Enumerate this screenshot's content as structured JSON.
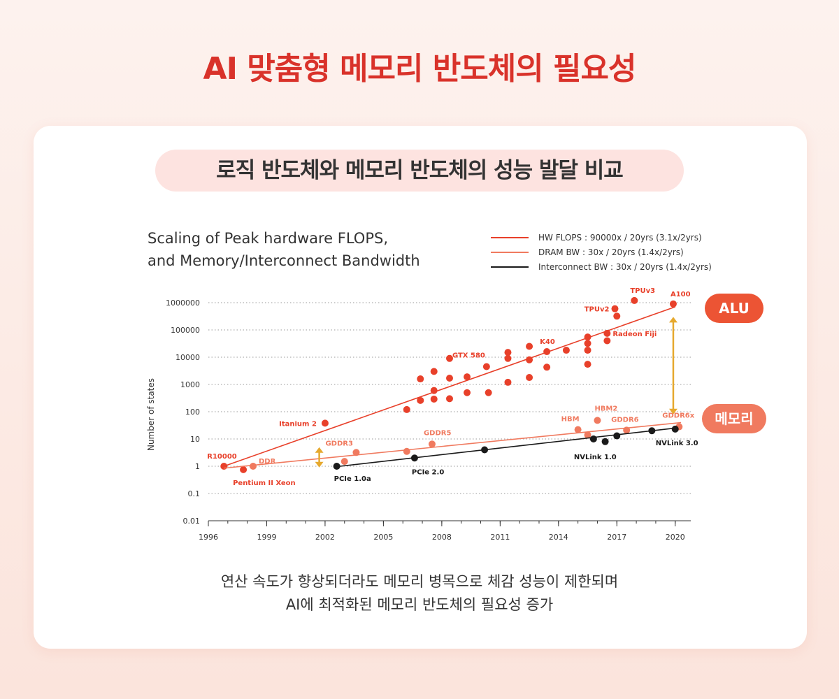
{
  "header": {
    "title": "AI 맞춤형 메모리 반도체의 필요성"
  },
  "card": {
    "subtitle": "로직 반도체와 메모리 반도체의 성능 발달 비교",
    "caption_line1": "연산 속도가 향상되더라도 메모리 병목으로 체감 성능이 제한되며",
    "caption_line2": "AI에 최적화된 메모리 반도체의 필요성 증가"
  },
  "chart_data": {
    "type": "scatter",
    "title_lines": [
      "Scaling of Peak hardware FLOPS,",
      "and Memory/Interconnect Bandwidth"
    ],
    "ylabel": "Number of states",
    "yscale": "log",
    "ylim": [
      0.01,
      1000000
    ],
    "y_ticks": [
      0.01,
      0.1,
      1,
      10,
      100,
      1000,
      10000,
      100000,
      1000000
    ],
    "y_tick_labels": [
      "0.01",
      "0.1",
      "1",
      "10",
      "100",
      "1000",
      "10000",
      "100000",
      "1000000"
    ],
    "xlim": [
      1996,
      2020.8
    ],
    "x_ticks": [
      1996,
      1999,
      2002,
      2005,
      2008,
      2011,
      2014,
      2017,
      2020
    ],
    "x_tick_labels": [
      "1996",
      "1999",
      "2002",
      "2005",
      "2008",
      "2011",
      "2014",
      "2017",
      "2020"
    ],
    "grid": "horizontal-dotted",
    "legend_position": "top-right",
    "legend": [
      {
        "label": "HW FLOPS : 90000x / 20yrs (3.1x/2yrs)",
        "color": "#e8402a"
      },
      {
        "label": "DRAM BW : 30x / 20yrs (1.4x/2yrs)",
        "color": "#f07a5f"
      },
      {
        "label": "Interconnect BW : 30x / 20yrs (1.4x/2yrs)",
        "color": "#1a1a1a"
      }
    ],
    "series": [
      {
        "color": "#e8402a",
        "trend": [
          [
            1996.8,
            1
          ],
          [
            2020,
            700000
          ]
        ],
        "points": [
          {
            "x": 1996.8,
            "y": 1,
            "label": "R10000"
          },
          {
            "x": 1997.8,
            "y": 0.75,
            "label": "Pentium II Xeon"
          },
          {
            "x": 2002.0,
            "y": 38,
            "label": "Itanium 2"
          },
          {
            "x": 2006.2,
            "y": 120
          },
          {
            "x": 2006.9,
            "y": 260
          },
          {
            "x": 2006.9,
            "y": 1600
          },
          {
            "x": 2007.6,
            "y": 290
          },
          {
            "x": 2007.6,
            "y": 600
          },
          {
            "x": 2007.6,
            "y": 3000
          },
          {
            "x": 2008.4,
            "y": 300
          },
          {
            "x": 2008.4,
            "y": 1700
          },
          {
            "x": 2008.4,
            "y": 9000
          },
          {
            "x": 2009.3,
            "y": 500
          },
          {
            "x": 2009.3,
            "y": 1900
          },
          {
            "x": 2010.3,
            "y": 4500,
            "label": "GTX 580"
          },
          {
            "x": 2010.4,
            "y": 500
          },
          {
            "x": 2011.4,
            "y": 1200
          },
          {
            "x": 2011.4,
            "y": 9000
          },
          {
            "x": 2011.4,
            "y": 15000
          },
          {
            "x": 2012.5,
            "y": 1800
          },
          {
            "x": 2012.5,
            "y": 8000
          },
          {
            "x": 2012.5,
            "y": 25000
          },
          {
            "x": 2013.4,
            "y": 4300
          },
          {
            "x": 2013.4,
            "y": 16000,
            "label": "K40"
          },
          {
            "x": 2014.4,
            "y": 18000
          },
          {
            "x": 2015.5,
            "y": 5500
          },
          {
            "x": 2015.5,
            "y": 18000
          },
          {
            "x": 2015.5,
            "y": 32000
          },
          {
            "x": 2015.5,
            "y": 55000
          },
          {
            "x": 2016.5,
            "y": 40000
          },
          {
            "x": 2016.5,
            "y": 75000,
            "label": "Radeon Fiji"
          },
          {
            "x": 2016.9,
            "y": 600000,
            "label": "TPUv2"
          },
          {
            "x": 2017.0,
            "y": 320000
          },
          {
            "x": 2017.9,
            "y": 1200000,
            "label": "TPUv3"
          },
          {
            "x": 2019.9,
            "y": 900000,
            "label": "A100"
          }
        ]
      },
      {
        "color": "#f07a5f",
        "trend": [
          [
            1996.8,
            0.85
          ],
          [
            2020.3,
            40
          ]
        ],
        "points": [
          {
            "x": 1998.3,
            "y": 1,
            "label": "DDR"
          },
          {
            "x": 2003.0,
            "y": 1.5
          },
          {
            "x": 2003.6,
            "y": 3.2,
            "label": "GDDR3"
          },
          {
            "x": 2006.2,
            "y": 3.5
          },
          {
            "x": 2007.5,
            "y": 6.5,
            "label": "GDDR5"
          },
          {
            "x": 2015.0,
            "y": 22,
            "label": "HBM"
          },
          {
            "x": 2015.5,
            "y": 14
          },
          {
            "x": 2016.0,
            "y": 48,
            "label": "HBM2"
          },
          {
            "x": 2017.5,
            "y": 21,
            "label": "GDDR6"
          },
          {
            "x": 2020.2,
            "y": 28,
            "label": "GDDR6x"
          }
        ]
      },
      {
        "color": "#1a1a1a",
        "trend": [
          [
            2002.5,
            0.95
          ],
          [
            2020.0,
            25
          ]
        ],
        "points": [
          {
            "x": 2002.6,
            "y": 1,
            "label": "PCIe 1.0a"
          },
          {
            "x": 2006.6,
            "y": 2,
            "label": "PCIe 2.0"
          },
          {
            "x": 2010.2,
            "y": 4
          },
          {
            "x": 2015.8,
            "y": 10,
            "label": "NVLink 1.0"
          },
          {
            "x": 2016.4,
            "y": 8
          },
          {
            "x": 2017.0,
            "y": 13
          },
          {
            "x": 2018.8,
            "y": 20
          },
          {
            "x": 2020.0,
            "y": 23,
            "label": "NVLink 3.0"
          }
        ]
      }
    ],
    "annotations": [
      {
        "type": "double-arrow",
        "x": 2001.7,
        "y_from": 0.9,
        "y_to": 5,
        "color": "#e6a92e"
      },
      {
        "type": "double-arrow",
        "x": 2019.9,
        "y_from": 80,
        "y_to": 300000,
        "color": "#e6a92e"
      }
    ],
    "badges": [
      {
        "text": "ALU",
        "color": "#ec5434"
      },
      {
        "text": "메모리",
        "color": "#f07a5f"
      }
    ]
  }
}
